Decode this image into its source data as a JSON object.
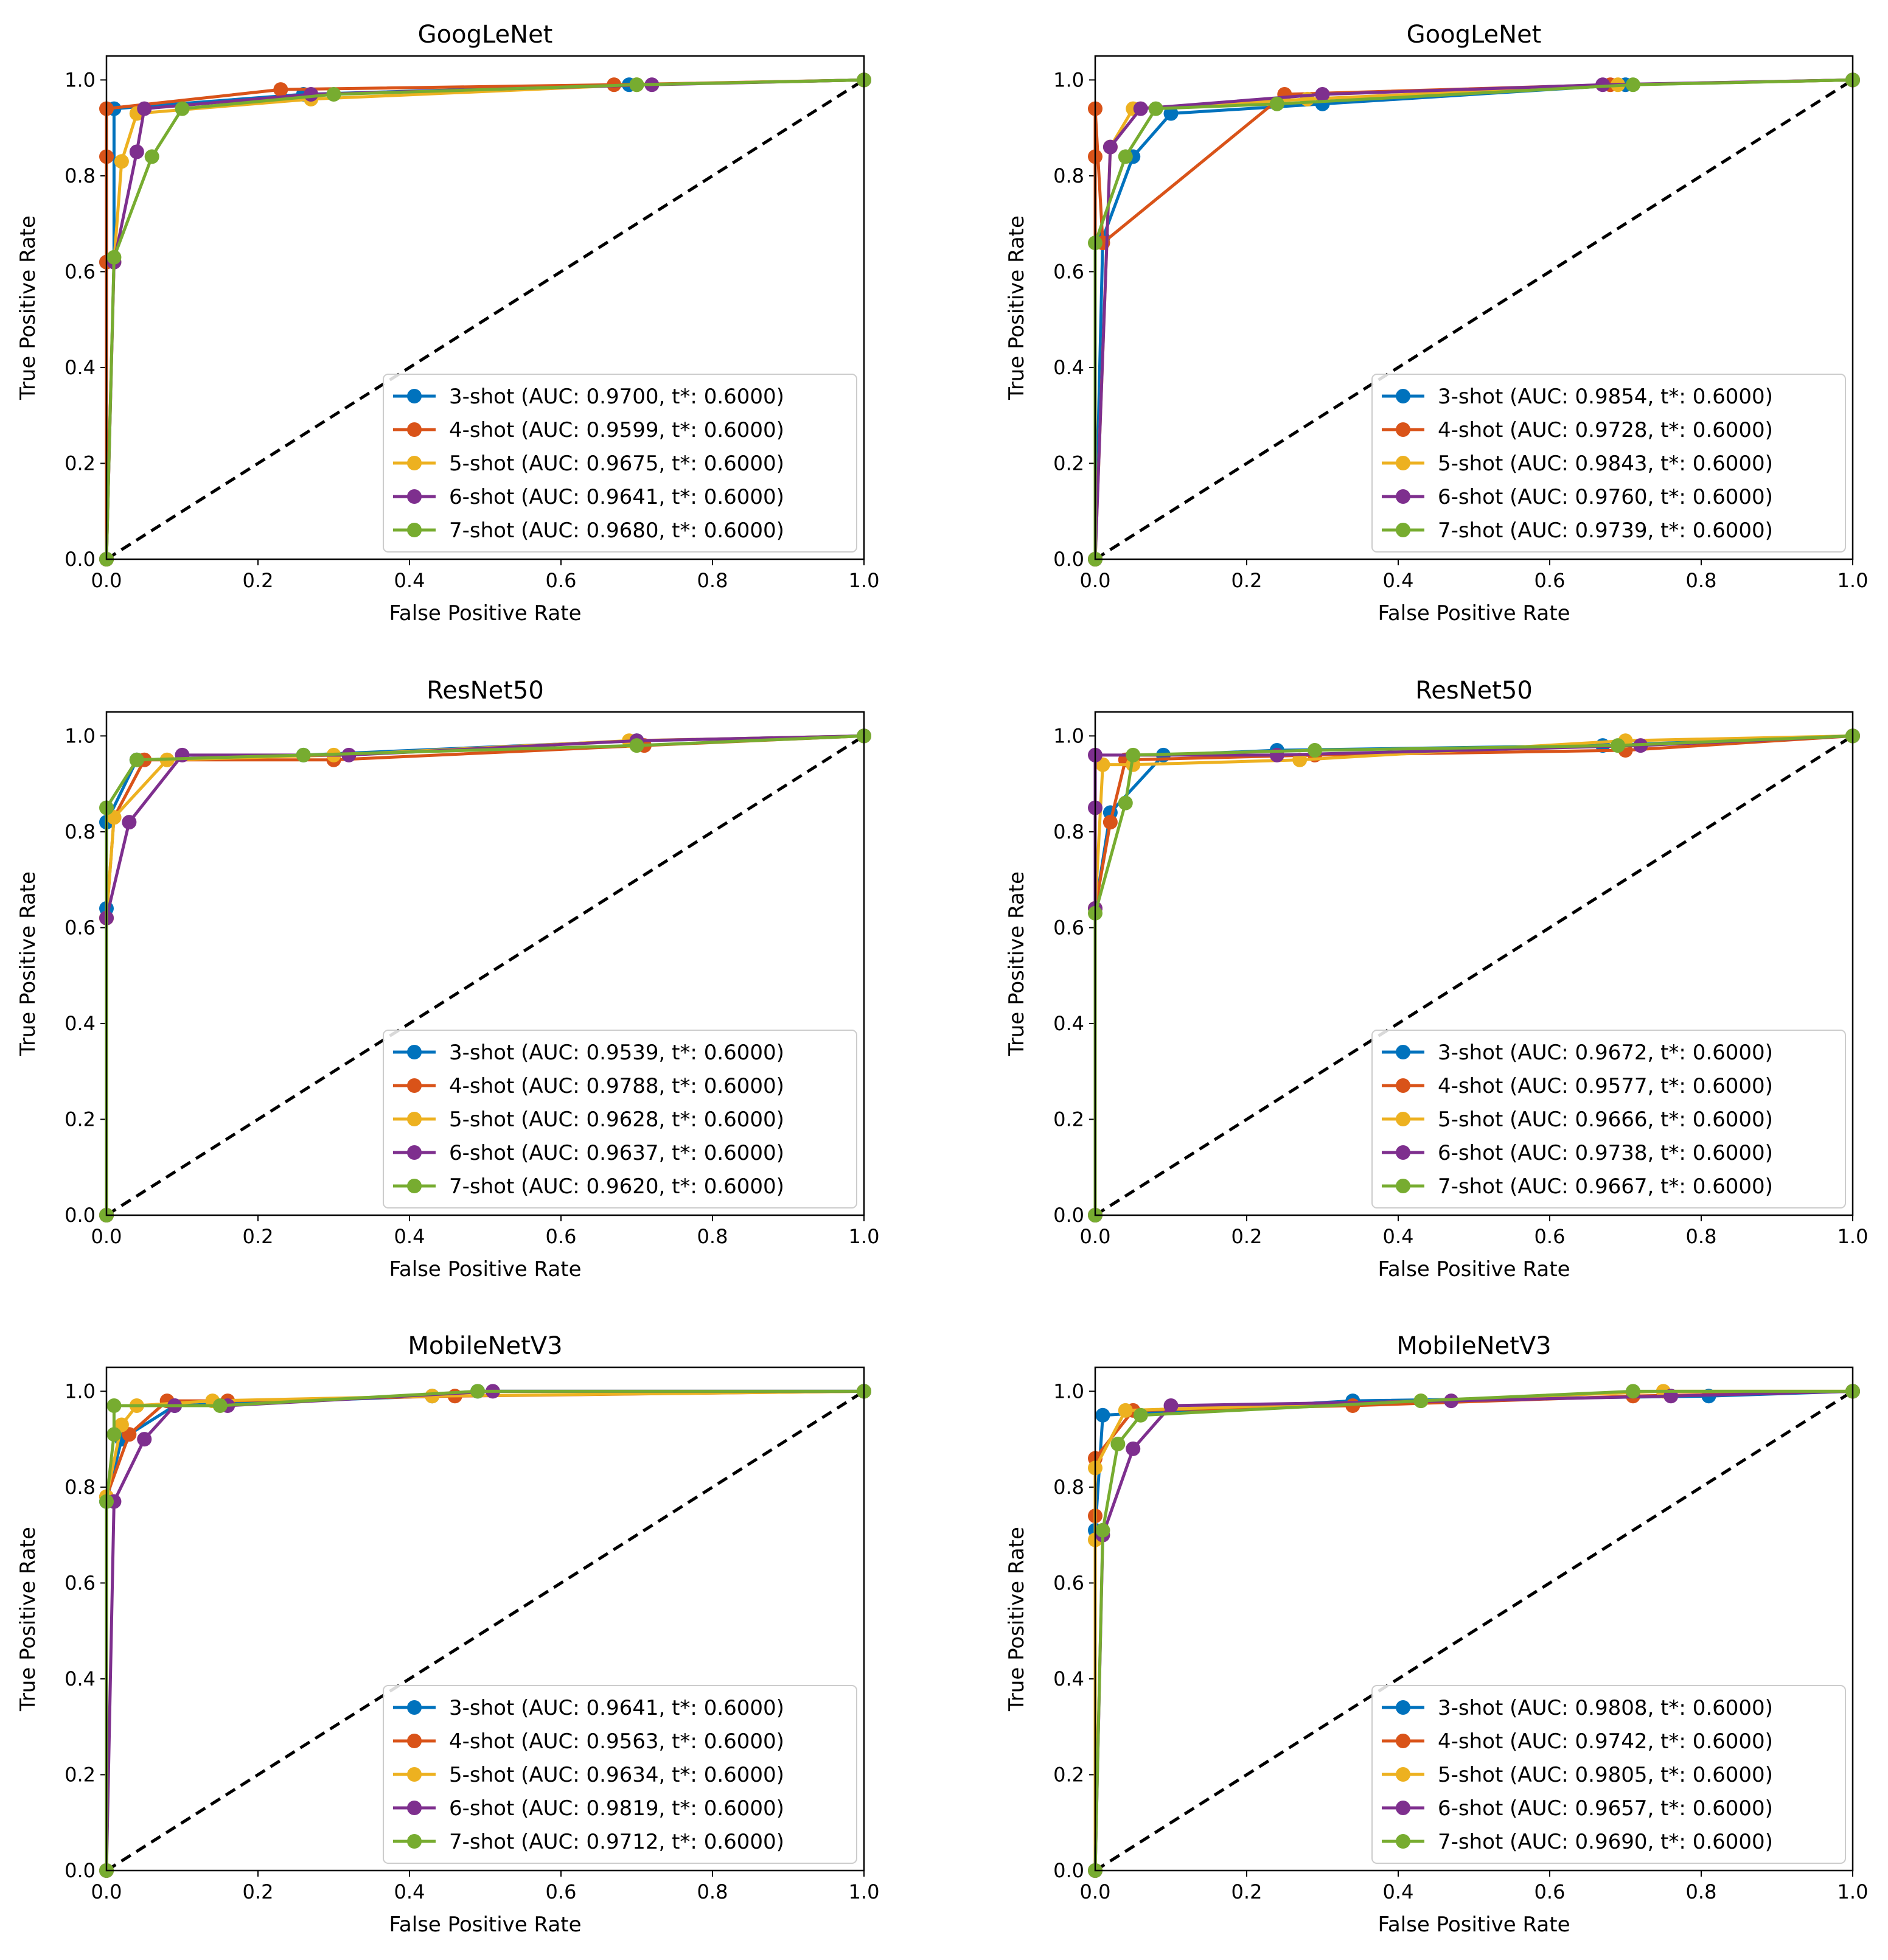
{
  "colors": {
    "3-shot": "#0072bd",
    "4-shot": "#d95319",
    "5-shot": "#edb120",
    "6-shot": "#7e2f8e",
    "7-shot": "#77ac30",
    "diagonal": "#000000"
  },
  "chart_data": [
    {
      "type": "line",
      "title": "GoogLeNet",
      "xlabel": "False Positive Rate",
      "ylabel": "True Positive Rate",
      "xlim": [
        0,
        1.0
      ],
      "ylim": [
        0,
        1.05
      ],
      "xticks": [
        "0.0",
        "0.2",
        "0.4",
        "0.6",
        "0.8",
        "1.0"
      ],
      "yticks": [
        "0.0",
        "0.2",
        "0.4",
        "0.6",
        "0.8",
        "1.0"
      ],
      "legend_position": "lower-right",
      "series": [
        {
          "name": "3-shot",
          "label": "3-shot (AUC: 0.9700, t*: 0.6000)",
          "x": [
            0,
            0.0,
            0.01,
            0.01,
            0.26,
            0.69,
            1.0
          ],
          "y": [
            0,
            0.62,
            0.62,
            0.94,
            0.97,
            0.99,
            1.0
          ]
        },
        {
          "name": "4-shot",
          "label": "4-shot (AUC: 0.9599, t*: 0.6000)",
          "x": [
            0,
            0.0,
            0.0,
            0.0,
            0.23,
            0.67,
            1.0
          ],
          "y": [
            0,
            0.62,
            0.84,
            0.94,
            0.98,
            0.99,
            1.0
          ]
        },
        {
          "name": "5-shot",
          "label": "5-shot (AUC: 0.9675, t*: 0.6000)",
          "x": [
            0,
            0.01,
            0.02,
            0.04,
            0.27,
            0.7,
            1.0
          ],
          "y": [
            0,
            0.62,
            0.83,
            0.93,
            0.96,
            0.99,
            1.0
          ]
        },
        {
          "name": "6-shot",
          "label": "6-shot (AUC: 0.9641, t*: 0.6000)",
          "x": [
            0,
            0.01,
            0.04,
            0.05,
            0.27,
            0.72,
            1.0
          ],
          "y": [
            0,
            0.62,
            0.85,
            0.94,
            0.97,
            0.99,
            1.0
          ]
        },
        {
          "name": "7-shot",
          "label": "7-shot (AUC: 0.9680, t*: 0.6000)",
          "x": [
            0,
            0.01,
            0.06,
            0.1,
            0.3,
            0.7,
            1.0
          ],
          "y": [
            0,
            0.63,
            0.84,
            0.94,
            0.97,
            0.99,
            1.0
          ]
        }
      ]
    },
    {
      "type": "line",
      "title": "GoogLeNet",
      "xlabel": "False Positive Rate",
      "ylabel": "True Positive Rate",
      "xlim": [
        0,
        1.0
      ],
      "ylim": [
        0,
        1.05
      ],
      "xticks": [
        "0.0",
        "0.2",
        "0.4",
        "0.6",
        "0.8",
        "1.0"
      ],
      "yticks": [
        "0.0",
        "0.2",
        "0.4",
        "0.6",
        "0.8",
        "1.0"
      ],
      "legend_position": "lower-right",
      "series": [
        {
          "name": "3-shot",
          "label": "3-shot (AUC: 0.9854, t*: 0.6000)",
          "x": [
            0,
            0.01,
            0.05,
            0.1,
            0.3,
            0.7,
            1.0
          ],
          "y": [
            0,
            0.67,
            0.84,
            0.93,
            0.95,
            0.99,
            1.0
          ]
        },
        {
          "name": "4-shot",
          "label": "4-shot (AUC: 0.9728, t*: 0.6000)",
          "x": [
            0,
            0.0,
            0.0,
            0.01,
            0.25,
            0.68,
            1.0
          ],
          "y": [
            0,
            0.84,
            0.94,
            0.66,
            0.97,
            0.99,
            1.0
          ]
        },
        {
          "name": "5-shot",
          "label": "5-shot (AUC: 0.9843, t*: 0.6000)",
          "x": [
            0,
            0.02,
            0.05,
            0.28,
            0.69,
            1.0
          ],
          "y": [
            0,
            0.86,
            0.94,
            0.96,
            0.99,
            1.0
          ]
        },
        {
          "name": "6-shot",
          "label": "6-shot (AUC: 0.9760, t*: 0.6000)",
          "x": [
            0,
            0.02,
            0.06,
            0.3,
            0.67,
            1.0
          ],
          "y": [
            0,
            0.86,
            0.94,
            0.97,
            0.99,
            1.0
          ]
        },
        {
          "name": "7-shot",
          "label": "7-shot (AUC: 0.9739, t*: 0.6000)",
          "x": [
            0,
            0.0,
            0.04,
            0.08,
            0.24,
            0.71,
            1.0
          ],
          "y": [
            0,
            0.66,
            0.84,
            0.94,
            0.95,
            0.99,
            1.0
          ]
        }
      ]
    },
    {
      "type": "line",
      "title": "ResNet50",
      "xlabel": "False Positive Rate",
      "ylabel": "True Positive Rate",
      "xlim": [
        0,
        1.0
      ],
      "ylim": [
        0,
        1.05
      ],
      "xticks": [
        "0.0",
        "0.2",
        "0.4",
        "0.6",
        "0.8",
        "1.0"
      ],
      "yticks": [
        "0.0",
        "0.2",
        "0.4",
        "0.6",
        "0.8",
        "1.0"
      ],
      "legend_position": "lower-right",
      "series": [
        {
          "name": "3-shot",
          "label": "3-shot (AUC: 0.9539, t*: 0.6000)",
          "x": [
            0,
            0.0,
            0.0,
            0.04,
            0.26,
            0.7,
            1.0
          ],
          "y": [
            0,
            0.64,
            0.82,
            0.95,
            0.96,
            0.99,
            1.0
          ]
        },
        {
          "name": "4-shot",
          "label": "4-shot (AUC: 0.9788, t*: 0.6000)",
          "x": [
            0,
            0.0,
            0.01,
            0.05,
            0.3,
            0.71,
            1.0
          ],
          "y": [
            0,
            0.62,
            0.83,
            0.95,
            0.95,
            0.98,
            1.0
          ]
        },
        {
          "name": "5-shot",
          "label": "5-shot (AUC: 0.9628, t*: 0.6000)",
          "x": [
            0,
            0.0,
            0.01,
            0.08,
            0.3,
            0.69,
            1.0
          ],
          "y": [
            0,
            0.62,
            0.83,
            0.95,
            0.96,
            0.99,
            1.0
          ]
        },
        {
          "name": "6-shot",
          "label": "6-shot (AUC: 0.9637, t*: 0.6000)",
          "x": [
            0,
            0.0,
            0.03,
            0.1,
            0.32,
            0.7,
            1.0
          ],
          "y": [
            0,
            0.62,
            0.82,
            0.96,
            0.96,
            0.99,
            1.0
          ]
        },
        {
          "name": "7-shot",
          "label": "7-shot (AUC: 0.9620, t*: 0.6000)",
          "x": [
            0,
            0.0,
            0.04,
            0.26,
            0.7,
            1.0
          ],
          "y": [
            0,
            0.85,
            0.95,
            0.96,
            0.98,
            1.0
          ]
        }
      ]
    },
    {
      "type": "line",
      "title": "ResNet50",
      "xlabel": "False Positive Rate",
      "ylabel": "True Positive Rate",
      "xlim": [
        0,
        1.0
      ],
      "ylim": [
        0,
        1.05
      ],
      "xticks": [
        "0.0",
        "0.2",
        "0.4",
        "0.6",
        "0.8",
        "1.0"
      ],
      "yticks": [
        "0.0",
        "0.2",
        "0.4",
        "0.6",
        "0.8",
        "1.0"
      ],
      "legend_position": "lower-right",
      "series": [
        {
          "name": "3-shot",
          "label": "3-shot (AUC: 0.9672, t*: 0.6000)",
          "x": [
            0,
            0.0,
            0.02,
            0.09,
            0.24,
            0.67,
            1.0
          ],
          "y": [
            0,
            0.64,
            0.84,
            0.96,
            0.97,
            0.98,
            1.0
          ]
        },
        {
          "name": "4-shot",
          "label": "4-shot (AUC: 0.9577, t*: 0.6000)",
          "x": [
            0,
            0.0,
            0.02,
            0.04,
            0.29,
            0.7,
            1.0
          ],
          "y": [
            0,
            0.64,
            0.82,
            0.95,
            0.96,
            0.97,
            1.0
          ]
        },
        {
          "name": "5-shot",
          "label": "5-shot (AUC: 0.9666, t*: 0.6000)",
          "x": [
            0,
            0.0,
            0.01,
            0.05,
            0.27,
            0.7,
            1.0
          ],
          "y": [
            0,
            0.64,
            0.94,
            0.94,
            0.95,
            0.99,
            1.0
          ]
        },
        {
          "name": "6-shot",
          "label": "6-shot (AUC: 0.9738, t*: 0.6000)",
          "x": [
            0,
            0.0,
            0.0,
            0.0,
            0.24,
            0.72,
            1.0
          ],
          "y": [
            0,
            0.64,
            0.85,
            0.96,
            0.96,
            0.98,
            1.0
          ]
        },
        {
          "name": "7-shot",
          "label": "7-shot (AUC: 0.9667, t*: 0.6000)",
          "x": [
            0,
            0.0,
            0.04,
            0.05,
            0.29,
            0.69,
            1.0
          ],
          "y": [
            0,
            0.63,
            0.86,
            0.96,
            0.97,
            0.98,
            1.0
          ]
        }
      ]
    },
    {
      "type": "line",
      "title": "MobileNetV3",
      "xlabel": "False Positive Rate",
      "ylabel": "True Positive Rate",
      "xlim": [
        0,
        1.0
      ],
      "ylim": [
        0,
        1.05
      ],
      "xticks": [
        "0.0",
        "0.2",
        "0.4",
        "0.6",
        "0.8",
        "1.0"
      ],
      "yticks": [
        "0.0",
        "0.2",
        "0.4",
        "0.6",
        "0.8",
        "1.0"
      ],
      "legend_position": "lower-right",
      "series": [
        {
          "name": "3-shot",
          "label": "3-shot (AUC: 0.9641, t*: 0.6000)",
          "x": [
            0,
            0.0,
            0.02,
            0.09,
            0.43,
            0.49,
            1.0
          ],
          "y": [
            0,
            0.77,
            0.9,
            0.97,
            0.99,
            1.0,
            1.0
          ]
        },
        {
          "name": "4-shot",
          "label": "4-shot (AUC: 0.9563, t*: 0.6000)",
          "x": [
            0,
            0.0,
            0.03,
            0.08,
            0.16,
            0.46,
            1.0
          ],
          "y": [
            0,
            0.78,
            0.91,
            0.98,
            0.98,
            0.99,
            1.0
          ]
        },
        {
          "name": "5-shot",
          "label": "5-shot (AUC: 0.9634, t*: 0.6000)",
          "x": [
            0,
            0.0,
            0.02,
            0.04,
            0.14,
            0.43,
            1.0
          ],
          "y": [
            0,
            0.78,
            0.93,
            0.97,
            0.98,
            0.99,
            1.0
          ]
        },
        {
          "name": "6-shot",
          "label": "6-shot (AUC: 0.9819, t*: 0.6000)",
          "x": [
            0,
            0.01,
            0.05,
            0.09,
            0.16,
            0.51,
            1.0
          ],
          "y": [
            0,
            0.77,
            0.9,
            0.97,
            0.97,
            1.0,
            1.0
          ]
        },
        {
          "name": "7-shot",
          "label": "7-shot (AUC: 0.9712, t*: 0.6000)",
          "x": [
            0,
            0.0,
            0.01,
            0.01,
            0.15,
            0.49,
            1.0
          ],
          "y": [
            0,
            0.77,
            0.91,
            0.97,
            0.97,
            1.0,
            1.0
          ]
        }
      ]
    },
    {
      "type": "line",
      "title": "MobileNetV3",
      "xlabel": "False Positive Rate",
      "ylabel": "True Positive Rate",
      "xlim": [
        0,
        1.0
      ],
      "ylim": [
        0,
        1.05
      ],
      "xticks": [
        "0.0",
        "0.2",
        "0.4",
        "0.6",
        "0.8",
        "1.0"
      ],
      "yticks": [
        "0.0",
        "0.2",
        "0.4",
        "0.6",
        "0.8",
        "1.0"
      ],
      "legend_position": "lower-right",
      "series": [
        {
          "name": "3-shot",
          "label": "3-shot (AUC: 0.9808, t*: 0.6000)",
          "x": [
            0,
            0.0,
            0.01,
            0.34,
            0.81,
            1.0
          ],
          "y": [
            0,
            0.71,
            0.95,
            0.98,
            0.99,
            1.0
          ]
        },
        {
          "name": "4-shot",
          "label": "4-shot (AUC: 0.9742, t*: 0.6000)",
          "x": [
            0,
            0.0,
            0.0,
            0.05,
            0.34,
            0.71,
            1.0
          ],
          "y": [
            0,
            0.74,
            0.86,
            0.96,
            0.97,
            0.99,
            1.0
          ]
        },
        {
          "name": "5-shot",
          "label": "5-shot (AUC: 0.9805, t*: 0.6000)",
          "x": [
            0,
            0.0,
            0.0,
            0.04,
            0.43,
            0.75,
            1.0
          ],
          "y": [
            0,
            0.69,
            0.84,
            0.96,
            0.98,
            1.0,
            1.0
          ]
        },
        {
          "name": "6-shot",
          "label": "6-shot (AUC: 0.9657, t*: 0.6000)",
          "x": [
            0,
            0.01,
            0.05,
            0.1,
            0.47,
            0.76,
            1.0
          ],
          "y": [
            0,
            0.7,
            0.88,
            0.97,
            0.98,
            0.99,
            1.0
          ]
        },
        {
          "name": "7-shot",
          "label": "7-shot (AUC: 0.9690, t*: 0.6000)",
          "x": [
            0,
            0.01,
            0.03,
            0.06,
            0.43,
            0.71,
            1.0
          ],
          "y": [
            0,
            0.71,
            0.89,
            0.95,
            0.98,
            1.0,
            1.0
          ]
        }
      ]
    }
  ]
}
